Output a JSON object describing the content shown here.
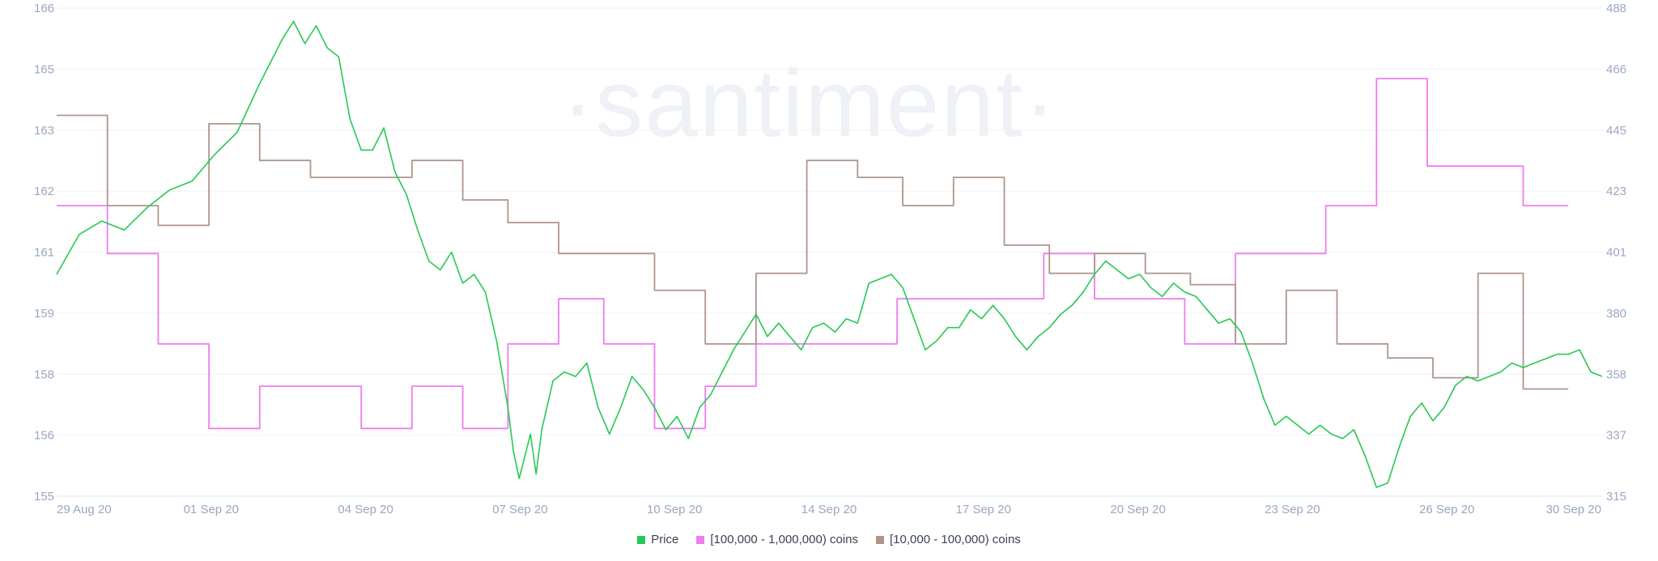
{
  "watermark": "·santiment·",
  "legend": [
    {
      "label": "Price",
      "color": "#26c953"
    },
    {
      "label": "[100,000  - 1,000,000) coins",
      "color": "#f07cf0"
    },
    {
      "label": "[10,000 - 100,000) coins",
      "color": "#ad968c"
    }
  ],
  "chart_data": {
    "type": "line",
    "x_ticks": [
      "29 Aug 20",
      "01 Sep 20",
      "04 Sep 20",
      "07 Sep 20",
      "10 Sep 20",
      "14 Sep 20",
      "17 Sep 20",
      "20 Sep 20",
      "23 Sep 20",
      "26 Sep 20",
      "30 Sep 20"
    ],
    "y_left_ticks": [
      "166",
      "165",
      "163",
      "162",
      "161",
      "159",
      "158",
      "156",
      "155"
    ],
    "y_right_ticks": [
      "488",
      "466",
      "445",
      "423",
      "401",
      "380",
      "358",
      "337",
      "315"
    ],
    "y_left_range": [
      155,
      166
    ],
    "y_right_range": [
      315,
      488
    ],
    "grid": "horizontal",
    "legend_position": "bottom-center",
    "series": [
      {
        "name": "Price",
        "axis": "left",
        "color": "#26c953",
        "points": [
          [
            0,
            160.0
          ],
          [
            4,
            160.9
          ],
          [
            8,
            161.2
          ],
          [
            12,
            161.0
          ],
          [
            16,
            161.5
          ],
          [
            20,
            161.9
          ],
          [
            24,
            162.1
          ],
          [
            28,
            162.7
          ],
          [
            32,
            163.2
          ],
          [
            36,
            164.3
          ],
          [
            40,
            165.3
          ],
          [
            42,
            165.7
          ],
          [
            44,
            165.2
          ],
          [
            46,
            165.6
          ],
          [
            48,
            165.1
          ],
          [
            50,
            164.9
          ],
          [
            52,
            163.5
          ],
          [
            54,
            162.8
          ],
          [
            56,
            162.8
          ],
          [
            58,
            163.3
          ],
          [
            60,
            162.3
          ],
          [
            62,
            161.8
          ],
          [
            64,
            161.0
          ],
          [
            66,
            160.3
          ],
          [
            68,
            160.1
          ],
          [
            70,
            160.5
          ],
          [
            72,
            159.8
          ],
          [
            74,
            160.0
          ],
          [
            76,
            159.6
          ],
          [
            78,
            158.5
          ],
          [
            80,
            157.0
          ],
          [
            81,
            156.0
          ],
          [
            82,
            155.4
          ],
          [
            84,
            156.4
          ],
          [
            85,
            155.5
          ],
          [
            86,
            156.5
          ],
          [
            88,
            157.6
          ],
          [
            90,
            157.8
          ],
          [
            92,
            157.7
          ],
          [
            94,
            158.0
          ],
          [
            96,
            157.0
          ],
          [
            98,
            156.4
          ],
          [
            100,
            157.0
          ],
          [
            102,
            157.7
          ],
          [
            104,
            157.4
          ],
          [
            106,
            157.0
          ],
          [
            108,
            156.5
          ],
          [
            110,
            156.8
          ],
          [
            112,
            156.3
          ],
          [
            114,
            157.0
          ],
          [
            116,
            157.3
          ],
          [
            118,
            157.8
          ],
          [
            120,
            158.3
          ],
          [
            122,
            158.7
          ],
          [
            124,
            159.1
          ],
          [
            126,
            158.6
          ],
          [
            128,
            158.9
          ],
          [
            130,
            158.6
          ],
          [
            132,
            158.3
          ],
          [
            134,
            158.8
          ],
          [
            136,
            158.9
          ],
          [
            138,
            158.7
          ],
          [
            140,
            159.0
          ],
          [
            142,
            158.9
          ],
          [
            144,
            159.8
          ],
          [
            146,
            159.9
          ],
          [
            148,
            160.0
          ],
          [
            150,
            159.7
          ],
          [
            152,
            159.0
          ],
          [
            154,
            158.3
          ],
          [
            156,
            158.5
          ],
          [
            158,
            158.8
          ],
          [
            160,
            158.8
          ],
          [
            162,
            159.2
          ],
          [
            164,
            159.0
          ],
          [
            166,
            159.3
          ],
          [
            168,
            159.0
          ],
          [
            170,
            158.6
          ],
          [
            172,
            158.3
          ],
          [
            174,
            158.6
          ],
          [
            176,
            158.8
          ],
          [
            178,
            159.1
          ],
          [
            180,
            159.3
          ],
          [
            182,
            159.6
          ],
          [
            184,
            160.0
          ],
          [
            186,
            160.3
          ],
          [
            188,
            160.1
          ],
          [
            190,
            159.9
          ],
          [
            192,
            160.0
          ],
          [
            194,
            159.7
          ],
          [
            196,
            159.5
          ],
          [
            198,
            159.8
          ],
          [
            200,
            159.6
          ],
          [
            202,
            159.5
          ],
          [
            204,
            159.2
          ],
          [
            206,
            158.9
          ],
          [
            208,
            159.0
          ],
          [
            210,
            158.7
          ],
          [
            212,
            158.0
          ],
          [
            214,
            157.2
          ],
          [
            216,
            156.6
          ],
          [
            218,
            156.8
          ],
          [
            220,
            156.6
          ],
          [
            222,
            156.4
          ],
          [
            224,
            156.6
          ],
          [
            226,
            156.4
          ],
          [
            228,
            156.3
          ],
          [
            230,
            156.5
          ],
          [
            232,
            155.9
          ],
          [
            234,
            155.2
          ],
          [
            236,
            155.3
          ],
          [
            238,
            156.1
          ],
          [
            240,
            156.8
          ],
          [
            242,
            157.1
          ],
          [
            244,
            156.7
          ],
          [
            246,
            157.0
          ],
          [
            248,
            157.5
          ],
          [
            250,
            157.7
          ],
          [
            252,
            157.6
          ],
          [
            254,
            157.7
          ],
          [
            256,
            157.8
          ],
          [
            258,
            158.0
          ],
          [
            260,
            157.9
          ],
          [
            262,
            158.0
          ],
          [
            264,
            158.1
          ],
          [
            266,
            158.2
          ],
          [
            268,
            158.2
          ],
          [
            270,
            158.3
          ],
          [
            272,
            157.8
          ],
          [
            274,
            157.7
          ]
        ]
      },
      {
        "name": "[100,000  - 1,000,000) coins",
        "axis": "right",
        "color": "#f07cf0",
        "points": [
          [
            0,
            418
          ],
          [
            9,
            418
          ],
          [
            9,
            401
          ],
          [
            18,
            401
          ],
          [
            18,
            369
          ],
          [
            27,
            369
          ],
          [
            27,
            339
          ],
          [
            36,
            339
          ],
          [
            36,
            354
          ],
          [
            54,
            354
          ],
          [
            54,
            339
          ],
          [
            63,
            339
          ],
          [
            63,
            354
          ],
          [
            72,
            354
          ],
          [
            72,
            339
          ],
          [
            80,
            339
          ],
          [
            80,
            369
          ],
          [
            89,
            369
          ],
          [
            89,
            385
          ],
          [
            97,
            385
          ],
          [
            97,
            369
          ],
          [
            106,
            369
          ],
          [
            106,
            339
          ],
          [
            115,
            339
          ],
          [
            115,
            354
          ],
          [
            124,
            354
          ],
          [
            124,
            369
          ],
          [
            149,
            369
          ],
          [
            149,
            385
          ],
          [
            175,
            385
          ],
          [
            175,
            401
          ],
          [
            184,
            401
          ],
          [
            184,
            385
          ],
          [
            200,
            385
          ],
          [
            200,
            369
          ],
          [
            209,
            369
          ],
          [
            209,
            401
          ],
          [
            225,
            401
          ],
          [
            225,
            418
          ],
          [
            234,
            418
          ],
          [
            234,
            463
          ],
          [
            243,
            463
          ],
          [
            243,
            432
          ],
          [
            260,
            432
          ],
          [
            260,
            418
          ],
          [
            268,
            418
          ]
        ]
      },
      {
        "name": "[10,000 - 100,000) coins",
        "axis": "right",
        "color": "#ad968c",
        "points": [
          [
            0,
            450
          ],
          [
            9,
            450
          ],
          [
            9,
            418
          ],
          [
            18,
            418
          ],
          [
            18,
            411
          ],
          [
            27,
            411
          ],
          [
            27,
            447
          ],
          [
            36,
            447
          ],
          [
            36,
            434
          ],
          [
            45,
            434
          ],
          [
            45,
            428
          ],
          [
            63,
            428
          ],
          [
            63,
            434
          ],
          [
            72,
            434
          ],
          [
            72,
            420
          ],
          [
            80,
            420
          ],
          [
            80,
            412
          ],
          [
            89,
            412
          ],
          [
            89,
            401
          ],
          [
            106,
            401
          ],
          [
            106,
            388
          ],
          [
            115,
            388
          ],
          [
            115,
            369
          ],
          [
            124,
            369
          ],
          [
            124,
            394
          ],
          [
            133,
            394
          ],
          [
            133,
            434
          ],
          [
            142,
            434
          ],
          [
            142,
            428
          ],
          [
            150,
            428
          ],
          [
            150,
            418
          ],
          [
            159,
            418
          ],
          [
            159,
            428
          ],
          [
            168,
            428
          ],
          [
            168,
            404
          ],
          [
            176,
            404
          ],
          [
            176,
            394
          ],
          [
            184,
            394
          ],
          [
            184,
            401
          ],
          [
            193,
            401
          ],
          [
            193,
            394
          ],
          [
            201,
            394
          ],
          [
            201,
            390
          ],
          [
            209,
            390
          ],
          [
            209,
            369
          ],
          [
            218,
            369
          ],
          [
            218,
            388
          ],
          [
            227,
            388
          ],
          [
            227,
            369
          ],
          [
            236,
            369
          ],
          [
            236,
            364
          ],
          [
            244,
            364
          ],
          [
            244,
            357
          ],
          [
            252,
            357
          ],
          [
            252,
            394
          ],
          [
            260,
            394
          ],
          [
            260,
            353
          ],
          [
            268,
            353
          ]
        ]
      }
    ]
  }
}
